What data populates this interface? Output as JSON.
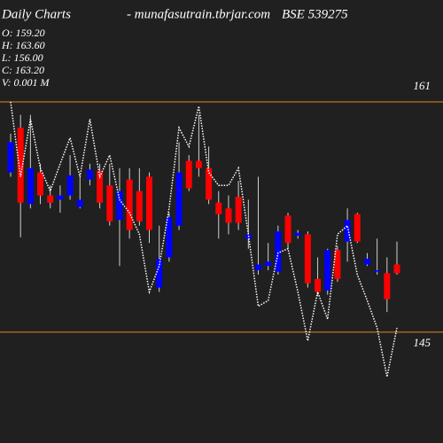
{
  "chart_data": {
    "type": "candlestick",
    "title": "Daily Charts",
    "subtitle": "- munafasutrain.tbrjar.com",
    "symbol": "BSE 539275",
    "info": [
      "O: 159.20",
      "H: 163.60",
      "L: 156.00",
      "C: 163.20",
      "V: 0.001 M"
    ],
    "ylim": [
      137.3,
      168.08
    ],
    "yticks": [
      145,
      161
    ],
    "grid": true,
    "grid_color": "#e08a1e",
    "up_color": "#0000ff",
    "down_color": "#ff0000",
    "wick_color": "#d0d0d0",
    "line_color": "#ffffff",
    "open": [
      156.1,
      159.2,
      153.9,
      156.1,
      154.5,
      154.2,
      154.5,
      153.7,
      155.6,
      156.2,
      155.2,
      152.8,
      155.6,
      154.8,
      155.8,
      148.1,
      150.2,
      152.4,
      156.9,
      156.9,
      156.4,
      154.0,
      153.6,
      154.4,
      151.5,
      149.3,
      149.6,
      149.2,
      153.1,
      151.7,
      151.8,
      148.7,
      147.9,
      150.7,
      151.3,
      153.2,
      149.7,
      149.2,
      149.1,
      149.7
    ],
    "high": [
      158.8,
      160.1,
      160.1,
      156.7,
      155.2,
      155.2,
      157.3,
      155.8,
      156.7,
      156.7,
      156.7,
      156.4,
      156.4,
      156.4,
      156.1,
      152.4,
      153.3,
      158.2,
      157.3,
      160.1,
      157.9,
      154.8,
      154.5,
      155.5,
      154.2,
      155.8,
      151.2,
      152.4,
      153.3,
      152.1,
      152.0,
      150.2,
      150.8,
      151.0,
      153.6,
      153.3,
      150.5,
      151.5,
      150.2,
      151.3
    ],
    "low": [
      155.8,
      151.6,
      153.6,
      153.9,
      153.6,
      153.3,
      154.2,
      153.6,
      155.2,
      153.6,
      152.4,
      149.6,
      151.5,
      152.4,
      151.2,
      147.8,
      149.9,
      152.1,
      154.8,
      155.8,
      153.9,
      151.5,
      151.8,
      152.1,
      150.8,
      149.0,
      149.3,
      149.0,
      150.8,
      151.5,
      148.1,
      147.5,
      147.6,
      148.5,
      149.9,
      151.2,
      149.6,
      149.0,
      146.4,
      149.0
    ],
    "close": [
      158.2,
      154.0,
      156.4,
      154.5,
      154.0,
      154.5,
      155.9,
      154.2,
      156.3,
      154.0,
      152.7,
      154.8,
      152.1,
      152.7,
      152.1,
      150.1,
      153.0,
      156.1,
      155.0,
      156.4,
      154.2,
      153.2,
      152.6,
      152.6,
      151.8,
      149.7,
      149.9,
      152.0,
      151.2,
      151.9,
      148.4,
      147.8,
      150.7,
      148.7,
      152.8,
      151.3,
      150.1,
      149.3,
      147.3,
      149.1
    ],
    "line": [
      161.0,
      155.8,
      159.8,
      156.4,
      154.8,
      156.7,
      158.5,
      155.8,
      159.8,
      155.8,
      157.3,
      154.2,
      153.3,
      151.8,
      147.8,
      149.6,
      153.6,
      159.2,
      157.9,
      160.7,
      156.1,
      155.2,
      155.2,
      156.4,
      151.8,
      146.8,
      147.2,
      150.5,
      150.8,
      147.8,
      144.4,
      147.8,
      145.9,
      151.8,
      152.4,
      149.0,
      147.2,
      145.3,
      141.9,
      145.3
    ]
  }
}
